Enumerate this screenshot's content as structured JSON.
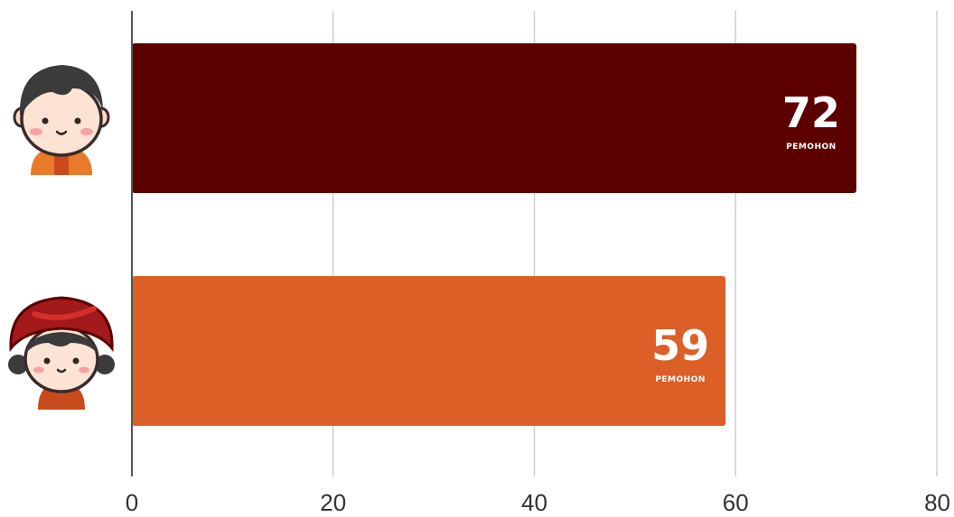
{
  "chart_data": {
    "type": "bar",
    "orientation": "horizontal",
    "categories": [
      "boy",
      "girl"
    ],
    "values": [
      72,
      59
    ],
    "unit_label": "PEMOHON",
    "xlim": [
      0,
      80
    ],
    "xticks": [
      "0",
      "20",
      "40",
      "60",
      "80"
    ],
    "grid": true,
    "legend": "none",
    "title": "",
    "xlabel": "",
    "ylabel": ""
  },
  "colors": {
    "bar_boy": "#5c0000",
    "bar_girl": "#dc5f28",
    "grid": "#cfcfcf",
    "axis": "#555555",
    "text": "#333333"
  },
  "icons": [
    "boy-avatar-icon",
    "girl-avatar-icon"
  ]
}
